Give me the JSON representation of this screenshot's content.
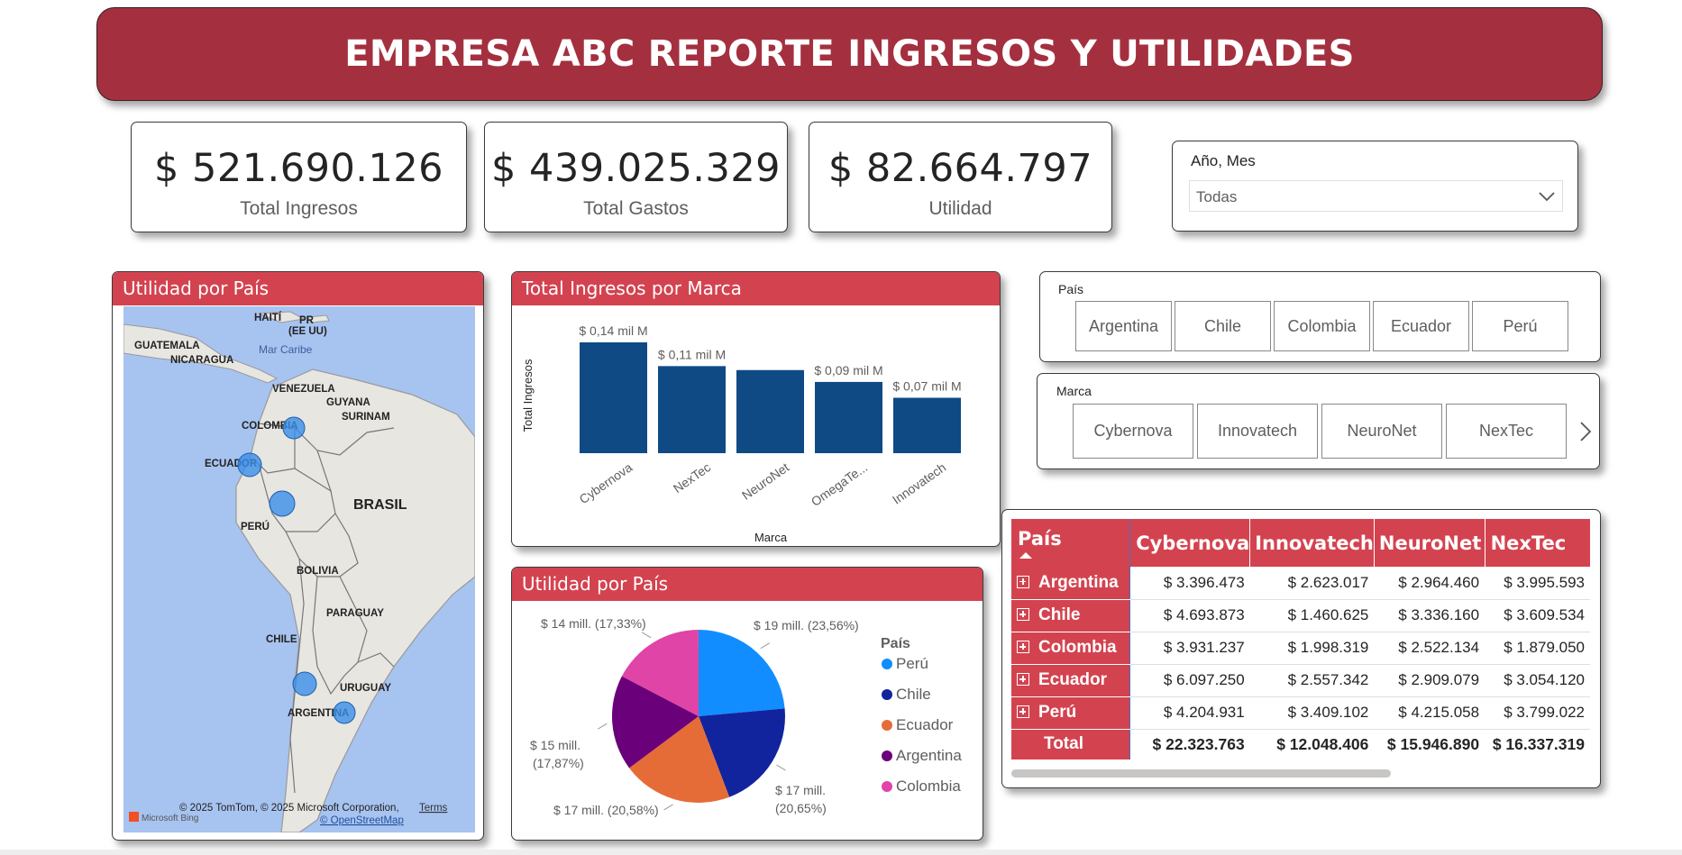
{
  "header": {
    "title": "EMPRESA ABC REPORTE INGRESOS Y UTILIDADES"
  },
  "kpis": [
    {
      "value": "$ 521.690.126",
      "label": "Total Ingresos"
    },
    {
      "value": "$ 439.025.329",
      "label": "Total Gastos"
    },
    {
      "value": "$ 82.664.797",
      "label": "Utilidad"
    }
  ],
  "date_slicer": {
    "label": "Año, Mes",
    "selected": "Todas"
  },
  "country_slicer": {
    "label": "País",
    "items": [
      "Argentina",
      "Chile",
      "Colombia",
      "Ecuador",
      "Perú"
    ]
  },
  "brand_slicer": {
    "label": "Marca",
    "items": [
      "Cybernova",
      "Innovatech",
      "NeuroNet",
      "NexTec"
    ]
  },
  "map": {
    "title": "Utilidad por País",
    "labels": {
      "haiti": "HAITÍ",
      "pr": "PR",
      "pr2": "(EE UU)",
      "guatemala": "GUATEMALA",
      "nicaragua": "NICARAGUA",
      "mar": "Mar Caribe",
      "venezuela": "VENEZUELA",
      "guyana": "GUYANA",
      "surinam": "SURINAM",
      "colombia": "COLOMBIA",
      "ecuador": "ECUADOR",
      "peru": "PERÚ",
      "brasil": "BRASIL",
      "bolivia": "BOLIVIA",
      "paraguay": "PARAGUAY",
      "chile": "CHILE",
      "uruguay": "URUGUAY",
      "argentina": "ARGENTINA"
    },
    "attribution": "© 2025 TomTom, © 2025 Microsoft Corporation,",
    "terms": "Terms",
    "osm": "© OpenStreetMap",
    "bing": "Microsoft Bing"
  },
  "bar_chart": {
    "title": "Total Ingresos por Marca"
  },
  "pie_chart": {
    "title": "Utilidad por País",
    "legend_title": "País"
  },
  "matrix": {
    "corner": "País",
    "columns": [
      "Cybernova",
      "Innovatech",
      "NeuroNet",
      "NexTec"
    ],
    "rows": [
      {
        "label": "Argentina",
        "values": [
          "$ 3.396.473",
          "$ 2.623.017",
          "$ 2.964.460",
          "$ 3.995.593"
        ]
      },
      {
        "label": "Chile",
        "values": [
          "$ 4.693.873",
          "$ 1.460.625",
          "$ 3.336.160",
          "$ 3.609.534"
        ]
      },
      {
        "label": "Colombia",
        "values": [
          "$ 3.931.237",
          "$ 1.998.319",
          "$ 2.522.134",
          "$ 1.879.050"
        ]
      },
      {
        "label": "Ecuador",
        "values": [
          "$ 6.097.250",
          "$ 2.557.342",
          "$ 2.909.079",
          "$ 3.054.120"
        ]
      },
      {
        "label": "Perú",
        "values": [
          "$ 4.204.931",
          "$ 3.409.102",
          "$ 4.215.058",
          "$ 3.799.022"
        ]
      }
    ],
    "total_label": "Total",
    "totals": [
      "$ 22.323.763",
      "$ 12.048.406",
      "$ 15.946.890",
      "$ 16.337.319"
    ]
  },
  "chart_data": [
    {
      "type": "bar",
      "title": "Total Ingresos por Marca",
      "xlabel": "Marca",
      "ylabel": "Total Ingresos",
      "categories": [
        "Cybernova",
        "NexTec",
        "NeuroNet",
        "OmegaTe...",
        "Innovatech"
      ],
      "values": [
        0.14,
        0.11,
        0.105,
        0.09,
        0.07
      ],
      "unit": "mil M",
      "data_labels": [
        "$ 0,14 mil M",
        "$ 0,11 mil M",
        "",
        "$ 0,09 mil M",
        "$ 0,07 mil M"
      ],
      "color": "#0f4a84"
    },
    {
      "type": "pie",
      "title": "Utilidad por País",
      "legend_title": "País",
      "categories": [
        "Perú",
        "Chile",
        "Ecuador",
        "Argentina",
        "Colombia"
      ],
      "values": [
        19,
        17,
        17,
        15,
        14
      ],
      "percents": [
        23.56,
        20.65,
        20.58,
        17.87,
        17.33
      ],
      "labels": [
        "$ 19 mill. (23,56%)",
        "$ 17 mill. (20,65%)",
        "$ 17 mill. (20,58%)",
        "$ 15 mill. (17,87%)",
        "$ 14 mill. (17,33%)"
      ],
      "colors": [
        "#118dff",
        "#12239e",
        "#e66c37",
        "#6b007b",
        "#e044a7"
      ],
      "legend": "right"
    }
  ]
}
